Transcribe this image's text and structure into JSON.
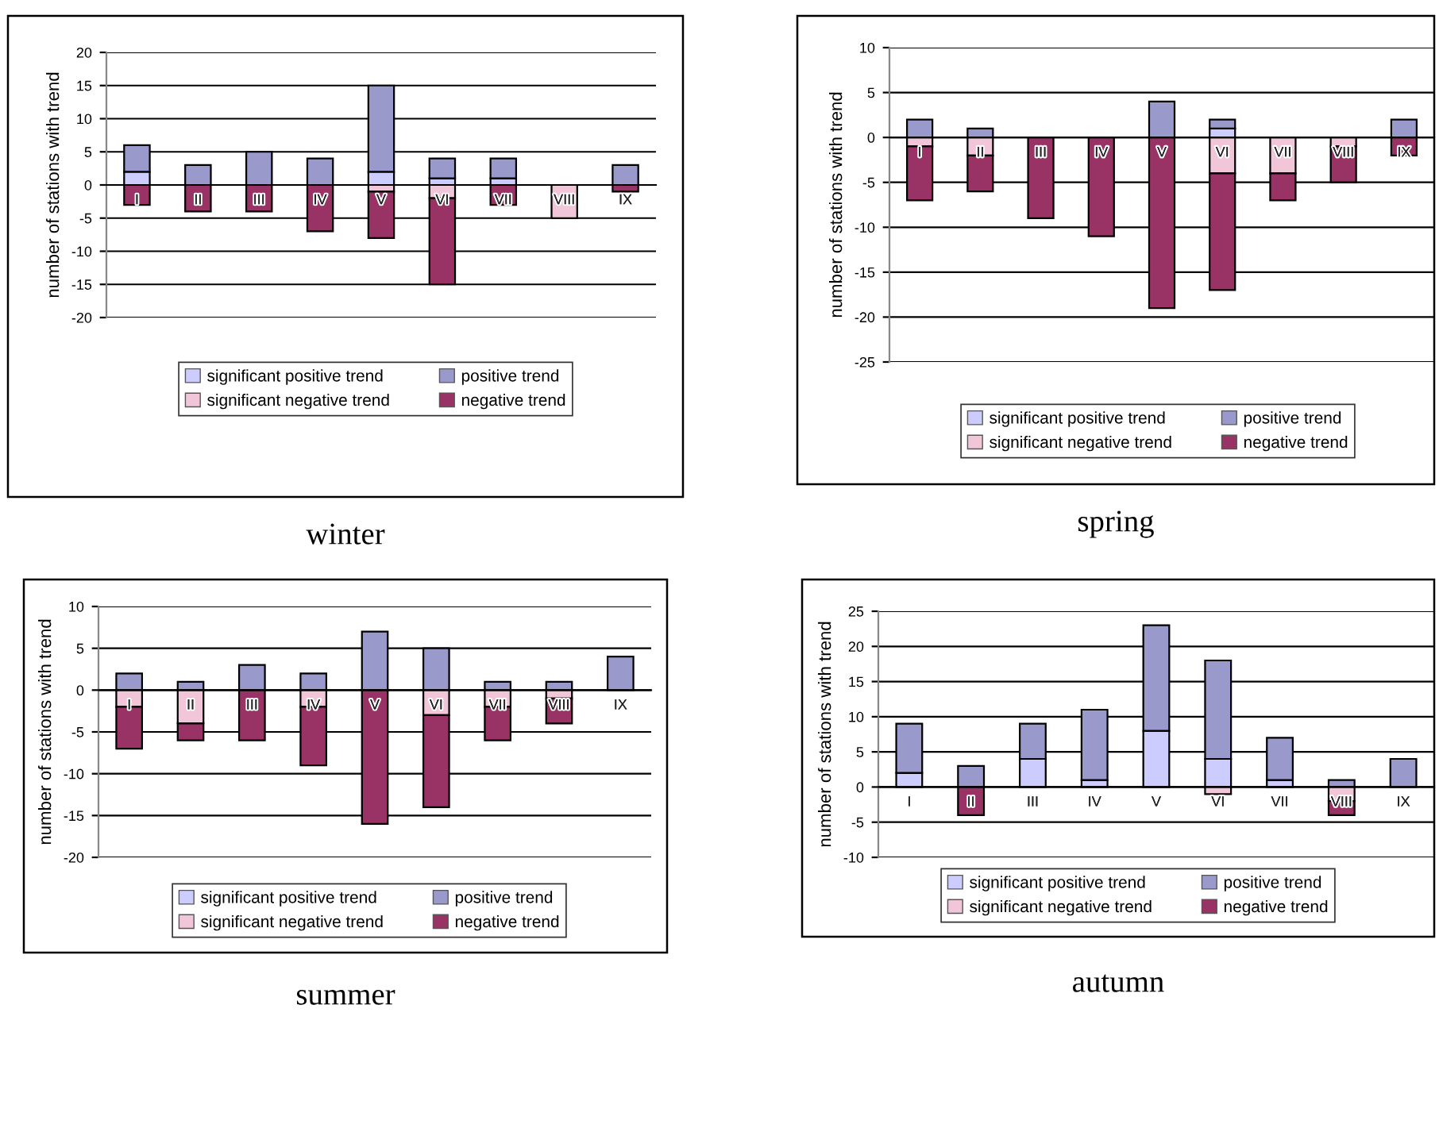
{
  "chart_data": [
    {
      "type": "bar",
      "stacked": true,
      "title": "winter",
      "ylabel": "number of stations with trend",
      "categories": [
        "I",
        "II",
        "III",
        "IV",
        "V",
        "VI",
        "VII",
        "VIII",
        "IX"
      ],
      "ylim": [
        -20,
        20
      ],
      "yticks": [
        -20,
        -15,
        -10,
        -5,
        0,
        5,
        10,
        15,
        20
      ],
      "grid": "y",
      "legend": "bottom",
      "series": [
        {
          "name": "significant positive trend",
          "color": "#ccccff",
          "values": [
            2,
            0,
            0,
            0,
            2,
            1,
            1,
            0,
            0
          ]
        },
        {
          "name": "positive trend",
          "color": "#9999cc",
          "values": [
            4,
            3,
            5,
            4,
            13,
            3,
            3,
            0,
            3
          ]
        },
        {
          "name": "significant negative trend",
          "color": "#f2c6d9",
          "values": [
            0,
            0,
            0,
            0,
            -1,
            -2,
            0,
            -5,
            0
          ]
        },
        {
          "name": "negative trend",
          "color": "#993366",
          "values": [
            -3,
            -4,
            -4,
            -7,
            -7,
            -13,
            -3,
            0,
            -1
          ]
        }
      ]
    },
    {
      "type": "bar",
      "stacked": true,
      "title": "spring",
      "ylabel": "number of stations with trend",
      "categories": [
        "I",
        "II",
        "III",
        "IV",
        "V",
        "VI",
        "VII",
        "VIII",
        "IX"
      ],
      "ylim": [
        -25,
        10
      ],
      "yticks": [
        -25,
        -20,
        -15,
        -10,
        -5,
        0,
        5,
        10
      ],
      "grid": "y",
      "legend": "bottom",
      "series": [
        {
          "name": "significant positive trend",
          "color": "#ccccff",
          "values": [
            0,
            0,
            0,
            0,
            0,
            1,
            0,
            0,
            0
          ]
        },
        {
          "name": "positive trend",
          "color": "#9999cc",
          "values": [
            2,
            1,
            0,
            0,
            4,
            1,
            0,
            0,
            2
          ]
        },
        {
          "name": "significant negative trend",
          "color": "#f2c6d9",
          "values": [
            -1,
            -2,
            0,
            0,
            0,
            -4,
            -4,
            -1,
            0
          ]
        },
        {
          "name": "negative trend",
          "color": "#993366",
          "values": [
            -6,
            -4,
            -9,
            -11,
            -19,
            -13,
            -3,
            -4,
            -2
          ]
        }
      ]
    },
    {
      "type": "bar",
      "stacked": true,
      "title": "summer",
      "ylabel": "number of stations with trend",
      "categories": [
        "I",
        "II",
        "III",
        "IV",
        "V",
        "VI",
        "VII",
        "VIII",
        "IX"
      ],
      "ylim": [
        -20,
        10
      ],
      "yticks": [
        -20,
        -15,
        -10,
        -5,
        0,
        5,
        10
      ],
      "grid": "y",
      "legend": "bottom",
      "series": [
        {
          "name": "significant positive trend",
          "color": "#ccccff",
          "values": [
            0,
            0,
            0,
            0,
            0,
            0,
            0,
            0,
            0
          ]
        },
        {
          "name": "positive trend",
          "color": "#9999cc",
          "values": [
            2,
            1,
            3,
            2,
            7,
            5,
            1,
            1,
            4
          ]
        },
        {
          "name": "significant negative trend",
          "color": "#f2c6d9",
          "values": [
            -2,
            -4,
            0,
            -2,
            0,
            -3,
            -2,
            -1,
            0
          ]
        },
        {
          "name": "negative trend",
          "color": "#993366",
          "values": [
            -5,
            -2,
            -6,
            -7,
            -16,
            -11,
            -4,
            -3,
            0
          ]
        }
      ]
    },
    {
      "type": "bar",
      "stacked": true,
      "title": "autumn",
      "ylabel": "number of stations with trend",
      "categories": [
        "I",
        "II",
        "III",
        "IV",
        "V",
        "VI",
        "VII",
        "VIII",
        "IX"
      ],
      "ylim": [
        -10,
        25
      ],
      "yticks": [
        -10,
        -5,
        0,
        5,
        10,
        15,
        20,
        25
      ],
      "grid": "y",
      "legend": "bottom",
      "series": [
        {
          "name": "significant positive trend",
          "color": "#ccccff",
          "values": [
            2,
            0,
            4,
            1,
            8,
            4,
            1,
            0,
            0
          ]
        },
        {
          "name": "positive trend",
          "color": "#9999cc",
          "values": [
            7,
            3,
            5,
            10,
            15,
            14,
            6,
            1,
            4
          ]
        },
        {
          "name": "significant negative trend",
          "color": "#f2c6d9",
          "values": [
            0,
            0,
            0,
            0,
            0,
            -1,
            0,
            -2,
            0
          ]
        },
        {
          "name": "negative trend",
          "color": "#993366",
          "values": [
            0,
            -4,
            0,
            0,
            0,
            0,
            0,
            -2,
            0
          ]
        }
      ]
    }
  ]
}
